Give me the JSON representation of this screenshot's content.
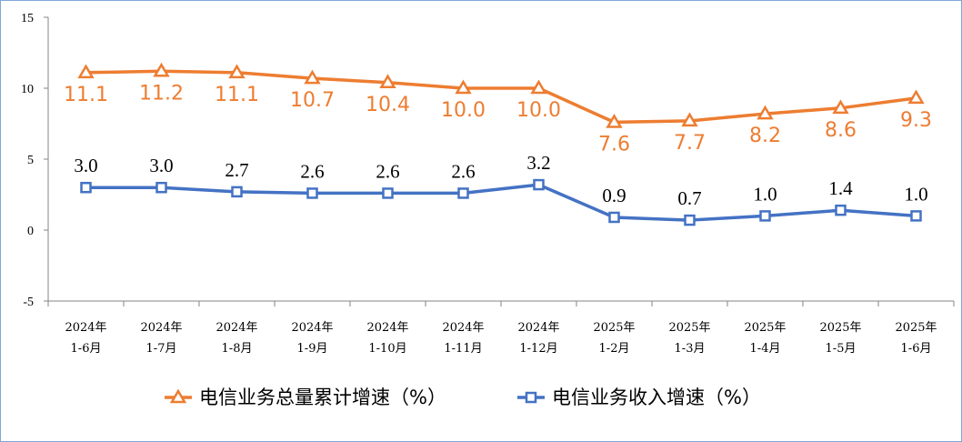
{
  "chart_data": {
    "type": "line",
    "categories": [
      [
        "2024年",
        "1-6月"
      ],
      [
        "2024年",
        "1-7月"
      ],
      [
        "2024年",
        "1-8月"
      ],
      [
        "2024年",
        "1-9月"
      ],
      [
        "2024年",
        "1-10月"
      ],
      [
        "2024年",
        "1-11月"
      ],
      [
        "2024年",
        "1-12月"
      ],
      [
        "2025年",
        "1-2月"
      ],
      [
        "2025年",
        "1-3月"
      ],
      [
        "2025年",
        "1-4月"
      ],
      [
        "2025年",
        "1-5月"
      ],
      [
        "2025年",
        "1-6月"
      ]
    ],
    "series": [
      {
        "name": "电信业务总量累计增速（%）",
        "color": "#ED7D31",
        "marker": "triangle",
        "values": [
          11.1,
          11.2,
          11.1,
          10.7,
          10.4,
          10.0,
          10.0,
          7.6,
          7.7,
          8.2,
          8.6,
          9.3
        ],
        "labels": [
          "11.1",
          "11.2",
          "11.1",
          "10.7",
          "10.4",
          "10.0",
          "10.0",
          "7.6",
          "7.7",
          "8.2",
          "8.6",
          "9.3"
        ]
      },
      {
        "name": "电信业务收入增速（%）",
        "color": "#4472C4",
        "marker": "square",
        "values": [
          3.0,
          3.0,
          2.7,
          2.6,
          2.6,
          2.6,
          3.2,
          0.9,
          0.7,
          1.0,
          1.4,
          1.0
        ],
        "labels": [
          "3.0",
          "3.0",
          "2.7",
          "2.6",
          "2.6",
          "2.6",
          "3.2",
          "0.9",
          "0.7",
          "1.0",
          "1.4",
          "1.0"
        ]
      }
    ],
    "ylim": [
      -5,
      15
    ],
    "yticks": [
      "15",
      "10",
      "5",
      "0",
      "-5"
    ],
    "ytick_values": [
      15,
      10,
      5,
      0,
      -5
    ],
    "grid": false,
    "legend_position": "bottom"
  }
}
